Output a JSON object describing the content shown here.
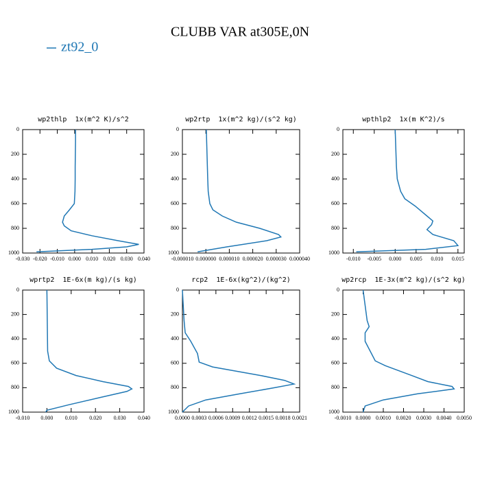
{
  "title": "CLUBB VAR at305E,0N",
  "legend": {
    "label": "zt92_0",
    "color": "#1f77b4"
  },
  "chart_data": [
    {
      "type": "line",
      "title": "wp2thlp  1x(m^2 K)/s^2",
      "xlim": [
        -0.03,
        0.04
      ],
      "xticks": [
        {
          "value": -0.03,
          "label": "-0.030"
        },
        {
          "value": -0.02,
          "label": "-0.020"
        },
        {
          "value": -0.01,
          "label": "-0.010"
        },
        {
          "value": 0,
          "label": "0.000"
        },
        {
          "value": 0.01,
          "label": "0.010"
        },
        {
          "value": 0.02,
          "label": "0.020"
        },
        {
          "value": 0.03,
          "label": "0.030"
        },
        {
          "value": 0.04,
          "label": "0.040"
        }
      ],
      "ylim": [
        1000,
        0
      ],
      "yticks": [
        0,
        200,
        400,
        600,
        800,
        1000
      ],
      "series": [
        {
          "color": "#1f77b4",
          "x": [
            0.0005,
            0.0005,
            0.0004,
            0.0003,
            0.0003,
            0.0002,
            -0.0002,
            -0.003,
            -0.006,
            -0.007,
            -0.006,
            -0.002,
            0.01,
            0.025,
            0.037,
            0.03,
            0.01,
            -0.022
          ],
          "values": [
            0,
            100,
            200,
            300,
            400,
            500,
            600,
            650,
            700,
            750,
            780,
            820,
            860,
            900,
            930,
            950,
            970,
            990
          ]
        }
      ]
    },
    {
      "type": "line",
      "title": "wp2rtp  1x(m^2 kg)/(s^2 kg)",
      "xlim": [
        -1e-05,
        4e-05
      ],
      "xticks": [
        {
          "value": -1e-05,
          "label": "-0.000010"
        },
        {
          "value": 0,
          "label": "0.000000"
        },
        {
          "value": 1e-05,
          "label": "0.000010"
        },
        {
          "value": 2e-05,
          "label": "0.000020"
        },
        {
          "value": 3e-05,
          "label": "0.000030"
        },
        {
          "value": 4e-05,
          "label": "0.000040"
        }
      ],
      "ylim": [
        1000,
        0
      ],
      "yticks": [
        0,
        200,
        400,
        600,
        800,
        1000
      ],
      "series": [
        {
          "color": "#1f77b4",
          "x": [
            2e-07,
            5e-07,
            8e-07,
            1e-06,
            1.7e-06,
            3e-06,
            7e-06,
            1.3e-05,
            2.3e-05,
            3.1e-05,
            3.2e-05,
            2.6e-05,
            9e-06,
            -3.5e-06
          ],
          "values": [
            0,
            200,
            400,
            500,
            600,
            650,
            700,
            750,
            800,
            850,
            870,
            900,
            950,
            990
          ]
        }
      ]
    },
    {
      "type": "line",
      "title": "wpthlp2  1x(m K^2)/s",
      "xlim": [
        -0.0125,
        0.0165
      ],
      "xticks": [
        {
          "value": -0.01,
          "label": "-0.010"
        },
        {
          "value": -0.005,
          "label": "-0.005"
        },
        {
          "value": 0,
          "label": "0.000"
        },
        {
          "value": 0.005,
          "label": "0.005"
        },
        {
          "value": 0.01,
          "label": "0.010"
        },
        {
          "value": 0.015,
          "label": "0.015"
        }
      ],
      "ylim": [
        1000,
        0
      ],
      "yticks": [
        0,
        200,
        400,
        600,
        800,
        1000
      ],
      "series": [
        {
          "color": "#1f77b4",
          "x": [
            0.0,
            0.0002,
            0.0003,
            0.0005,
            0.0013,
            0.0023,
            0.0048,
            0.0076,
            0.009,
            0.0087,
            0.0076,
            0.009,
            0.014,
            0.015,
            0.0073,
            -0.0093
          ],
          "values": [
            0,
            200,
            300,
            400,
            500,
            560,
            620,
            700,
            740,
            770,
            810,
            850,
            900,
            940,
            970,
            990
          ]
        }
      ]
    },
    {
      "type": "line",
      "title": "wprtp2  1E-6x(m kg)/(s kg)",
      "xlim": [
        -0.01,
        0.04
      ],
      "xticks": [
        {
          "value": -0.01,
          "label": "-0.010"
        },
        {
          "value": 0,
          "label": "0.000"
        },
        {
          "value": 0.01,
          "label": "0.010"
        },
        {
          "value": 0.02,
          "label": "0.020"
        },
        {
          "value": 0.03,
          "label": "0.030"
        },
        {
          "value": 0.04,
          "label": "0.040"
        }
      ],
      "ylim": [
        1000,
        0
      ],
      "yticks": [
        0,
        200,
        400,
        600,
        800,
        1000
      ],
      "series": [
        {
          "color": "#1f77b4",
          "x": [
            0.0,
            0.0003,
            0.001,
            0.004,
            0.012,
            0.023,
            0.0336,
            0.035,
            0.033,
            0.022,
            0.009,
            0.0,
            -0.0005
          ],
          "values": [
            0,
            500,
            580,
            640,
            700,
            750,
            790,
            810,
            830,
            880,
            940,
            985,
            1000
          ]
        }
      ]
    },
    {
      "type": "line",
      "title": "rcp2  1E-6x(kg^2)/(kg^2)",
      "xlim": [
        0,
        0.0021
      ],
      "xticks": [
        {
          "value": 0,
          "label": "0.0000"
        },
        {
          "value": 0.0003,
          "label": "0.0003"
        },
        {
          "value": 0.0006,
          "label": "0.0006"
        },
        {
          "value": 0.0009,
          "label": "0.0009"
        },
        {
          "value": 0.0012,
          "label": "0.0012"
        },
        {
          "value": 0.0015,
          "label": "0.0015"
        },
        {
          "value": 0.0018,
          "label": "0.0018"
        },
        {
          "value": 0.0021,
          "label": "0.0021"
        }
      ],
      "ylim": [
        1000,
        0
      ],
      "yticks": [
        0,
        200,
        400,
        600,
        800,
        1000
      ],
      "series": [
        {
          "color": "#1f77b4",
          "x": [
            0.0,
            3e-05,
            5e-05,
            0.00015,
            0.00027,
            0.0003,
            0.00054,
            0.0014,
            0.00183,
            0.002,
            0.00165,
            0.00103,
            0.00042,
            0.00011,
            0.0
          ],
          "values": [
            0,
            250,
            350,
            420,
            520,
            590,
            630,
            700,
            740,
            770,
            800,
            850,
            900,
            950,
            1000
          ]
        }
      ]
    },
    {
      "type": "line",
      "title": "wp2rcp  1E-3x(m^2 kg)/(s^2 kg)",
      "xlim": [
        -0.001,
        0.005
      ],
      "xticks": [
        {
          "value": -0.001,
          "label": "-0.0010"
        },
        {
          "value": 0,
          "label": "0.0000"
        },
        {
          "value": 0.001,
          "label": "0.0010"
        },
        {
          "value": 0.002,
          "label": "0.0020"
        },
        {
          "value": 0.003,
          "label": "0.0030"
        },
        {
          "value": 0.004,
          "label": "0.0040"
        },
        {
          "value": 0.005,
          "label": "0.0050"
        }
      ],
      "ylim": [
        1000,
        0
      ],
      "yticks": [
        0,
        200,
        400,
        600,
        800,
        1000
      ],
      "series": [
        {
          "color": "#1f77b4",
          "x": [
            0.0,
            0.0002,
            0.0003,
            0.0001,
            0.0001,
            0.00035,
            0.0006,
            0.0011,
            0.0024,
            0.0032,
            0.0044,
            0.0045,
            0.0027,
            0.001,
            0.0001,
            0.0
          ],
          "values": [
            0,
            250,
            300,
            350,
            420,
            500,
            580,
            620,
            700,
            750,
            790,
            810,
            850,
            900,
            950,
            1000
          ]
        }
      ]
    }
  ]
}
